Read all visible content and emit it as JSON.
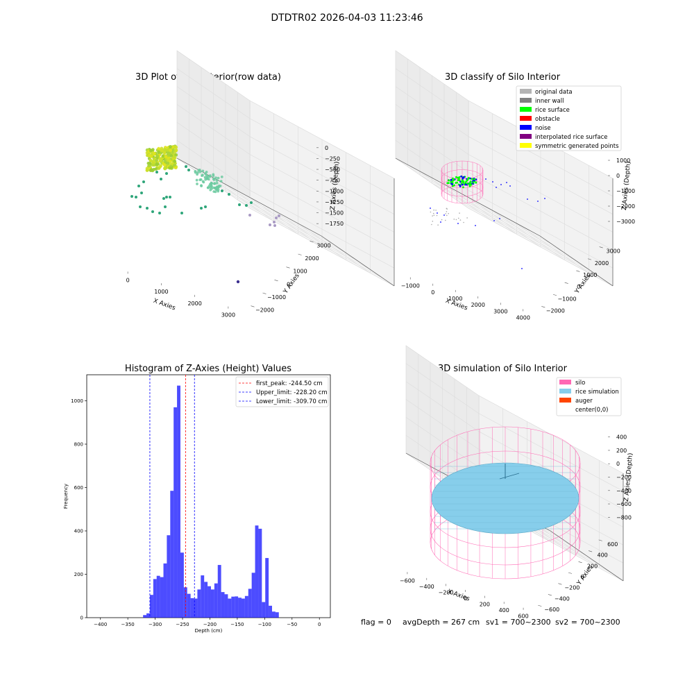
{
  "suptitle": "DTDTR02 2026-04-03 11:23:46",
  "panels": {
    "raw": {
      "title": "3D Plot of Silo Interior(row data)",
      "x_ticks": [
        "0",
        "1000",
        "2000",
        "3000"
      ],
      "y_ticks": [
        "−2000",
        "−1000",
        "0",
        "1000",
        "2000",
        "3000"
      ],
      "z_ticks": [
        "0",
        "−250",
        "−500",
        "−750",
        "−1000",
        "−1250",
        "−1500",
        "−1750"
      ],
      "xlabel": "X Axies",
      "ylabel": "Y Axies",
      "zlabel": "Z Axies (Depth)"
    },
    "classify": {
      "title": "3D classify of Silo Interior",
      "x_ticks": [
        "−1000",
        "0",
        "1000",
        "2000",
        "3000",
        "4000"
      ],
      "y_ticks": [
        "−2000",
        "−1000",
        "0",
        "1000",
        "2000",
        "3000"
      ],
      "z_ticks": [
        "1000",
        "0",
        "−1000",
        "−2000",
        "−3000"
      ],
      "xlabel": "X Axies",
      "ylabel": "Y Axies",
      "zlabel": "Z Axies (Depth)",
      "legend": [
        {
          "label": "original data",
          "color": "#b4b4b4"
        },
        {
          "label": "inner wall",
          "color": "#808080"
        },
        {
          "label": "rice surface",
          "color": "#00ff00"
        },
        {
          "label": "obstacle",
          "color": "#ff0000"
        },
        {
          "label": "noise",
          "color": "#0000ff"
        },
        {
          "label": "interpolated rice surface",
          "color": "#800080"
        },
        {
          "label": "symmetric generated points",
          "color": "#ffff00"
        }
      ]
    },
    "histogram": {
      "title": "Histogram of Z-Axies (Height) Values",
      "xlabel": "Depth (cm)",
      "ylabel": "Frequency",
      "x_ticks": [
        "−400",
        "−350",
        "−300",
        "−250",
        "−200",
        "−150",
        "−100",
        "−50",
        "0"
      ],
      "y_ticks": [
        "0",
        "200",
        "400",
        "600",
        "800",
        "1000"
      ],
      "legend": [
        {
          "label": "first_peak: -244.50 cm",
          "color": "#ff0000"
        },
        {
          "label": "Upper_limit: -228.20 cm",
          "color": "#0000ff"
        },
        {
          "label": "Lower_limit: -309.70 cm",
          "color": "#0000ff"
        }
      ]
    },
    "simulation": {
      "title": "3D simulation of Silo Interior",
      "x_ticks": [
        "−600",
        "−400",
        "−200",
        "0",
        "200",
        "400",
        "600"
      ],
      "y_ticks": [
        "−600",
        "−400",
        "−200",
        "0",
        "200",
        "400",
        "600"
      ],
      "z_ticks": [
        "400",
        "200",
        "0",
        "−200",
        "−400",
        "−600",
        "−800"
      ],
      "xlabel": "X Axies",
      "ylabel": "Y Axies",
      "zlabel": "Z Axies (Depth)",
      "legend": [
        {
          "label": "silo",
          "color": "#ff69b4"
        },
        {
          "label": "rice simulation",
          "color": "#87ceeb"
        },
        {
          "label": "auger",
          "color": "#ff4500"
        },
        {
          "label": "center(0,0)",
          "color": "#ffffff"
        }
      ]
    }
  },
  "footer": {
    "flag": "flag = 0",
    "avg": "avgDepth = 267 cm",
    "sv1": "sv1 = 700~2300",
    "sv2": "sv2 = 700~2300"
  },
  "chart_data": [
    {
      "type": "scatter",
      "title": "3D Plot of Silo Interior(row data)",
      "xlabel": "X Axies",
      "ylabel": "Y Axies",
      "zlabel": "Z Axies (Depth)",
      "xlim": [
        -600,
        3700
      ],
      "ylim": [
        -2100,
        3300
      ],
      "zlim": [
        -1900,
        100
      ]
    },
    {
      "type": "scatter",
      "title": "3D classify of Silo Interior",
      "xlabel": "X Axies",
      "ylabel": "Y Axies",
      "zlabel": "Z Axies (Depth)",
      "xlim": [
        -1300,
        4200
      ],
      "ylim": [
        -2100,
        3200
      ],
      "zlim": [
        -3300,
        1100
      ]
    },
    {
      "type": "bar",
      "title": "Histogram of Z-Axies (Height) Values",
      "xlabel": "Depth (cm)",
      "ylabel": "Frequency",
      "xlim": [
        -425,
        20
      ],
      "ylim": [
        0,
        1120
      ],
      "bin_start": -322.1,
      "bin_width": 6.2,
      "values": [
        12,
        20,
        105,
        178,
        193,
        187,
        250,
        380,
        585,
        970,
        1070,
        300,
        140,
        110,
        90,
        88,
        130,
        195,
        165,
        145,
        130,
        158,
        243,
        118,
        108,
        88,
        97,
        98,
        92,
        88,
        100,
        133,
        207,
        425,
        410,
        72,
        275,
        55,
        28,
        25
      ],
      "vlines": [
        {
          "name": "first_peak: -244.50 cm",
          "x": -244.5,
          "color": "#ff0000"
        },
        {
          "name": "Upper_limit: -228.20 cm",
          "x": -228.2,
          "color": "#0000ff"
        },
        {
          "name": "Lower_limit: -309.70 cm",
          "x": -309.7,
          "color": "#0000ff"
        }
      ]
    },
    {
      "type": "scatter",
      "title": "3D simulation of Silo Interior",
      "xlabel": "X Axies",
      "ylabel": "Y Axies",
      "zlabel": "Z Axies (Depth)",
      "xlim": [
        -650,
        650
      ],
      "ylim": [
        -650,
        650
      ],
      "zlim": [
        -900,
        450
      ]
    }
  ]
}
